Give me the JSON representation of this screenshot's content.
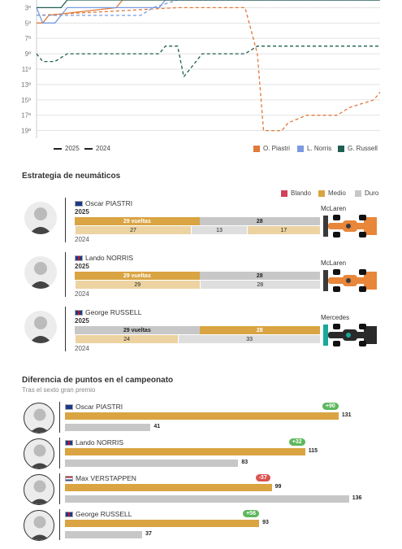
{
  "colors": {
    "piastri": "#e07a3a",
    "norris": "#7a9be0",
    "russell": "#1f5e52",
    "soft": "#d24059",
    "medium": "#d9a441",
    "medium_light": "#ecd3a1",
    "hard": "#c7c7c7",
    "gain": "#5cb85c",
    "loss": "#d9534f"
  },
  "position_chart": {
    "y_ticks": [
      "3º",
      "5º",
      "7º",
      "9º",
      "11º",
      "13º",
      "15º",
      "17º",
      "19º"
    ],
    "legend_years": {
      "y2025": "2025",
      "y2024": "2024"
    },
    "legend_drivers": [
      "O. Piastri",
      "L. Norris",
      "G. Russell"
    ]
  },
  "chart_data": [
    {
      "type": "line",
      "ylabel": "",
      "y_reversed": true,
      "ylim": [
        2,
        20
      ],
      "x_range": [
        1,
        57
      ],
      "series": [
        {
          "name": "O. Piastri",
          "year": "2025",
          "color": "#e07a3a",
          "points": [
            [
              1,
              5
            ],
            [
              2,
              5
            ],
            [
              3,
              4
            ],
            [
              14,
              3
            ],
            [
              15,
              2
            ],
            [
              57,
              2
            ]
          ]
        },
        {
          "name": "O. Piastri",
          "year": "2024",
          "color": "#e07a3a",
          "points": [
            [
              1,
              4
            ],
            [
              24,
              3
            ],
            [
              25,
              3
            ],
            [
              35,
              3
            ],
            [
              37,
              9
            ],
            [
              38,
              19
            ],
            [
              41,
              19
            ],
            [
              42,
              18
            ],
            [
              45,
              17
            ],
            [
              50,
              17
            ],
            [
              52,
              16
            ],
            [
              56,
              15
            ],
            [
              57,
              14
            ]
          ]
        },
        {
          "name": "L. Norris",
          "year": "2025",
          "color": "#7a9be0",
          "points": [
            [
              1,
              3
            ],
            [
              2,
              5
            ],
            [
              4,
              5
            ],
            [
              6,
              3
            ],
            [
              21,
              3
            ],
            [
              22,
              2
            ],
            [
              57,
              2
            ]
          ]
        },
        {
          "name": "L. Norris",
          "year": "2024",
          "color": "#7a9be0",
          "points": [
            [
              1,
              4
            ],
            [
              18,
              4
            ],
            [
              20,
              3
            ],
            [
              24,
              2
            ],
            [
              57,
              2
            ]
          ]
        },
        {
          "name": "G. Russell",
          "year": "2025",
          "color": "#1f5e52",
          "points": [
            [
              1,
              3
            ],
            [
              5,
              3
            ],
            [
              6,
              2
            ],
            [
              57,
              2
            ]
          ]
        },
        {
          "name": "G. Russell",
          "year": "2024",
          "color": "#1f5e52",
          "points": [
            [
              1,
              9
            ],
            [
              2,
              10
            ],
            [
              4,
              10
            ],
            [
              6,
              9
            ],
            [
              21,
              9
            ],
            [
              22,
              8
            ],
            [
              24,
              8
            ],
            [
              25,
              12
            ],
            [
              27,
              10
            ],
            [
              28,
              9
            ],
            [
              35,
              9
            ],
            [
              37,
              8
            ],
            [
              57,
              8
            ]
          ]
        }
      ]
    },
    {
      "type": "bar",
      "title": "Estrategia de neumáticos",
      "legend": [
        "Blando",
        "Medio",
        "Duro"
      ],
      "drivers": [
        {
          "name": "Oscar PIASTRI",
          "team": "McLaren",
          "y2025": [
            {
              "compound": "medium",
              "laps": 29,
              "label": "29 vueltas"
            },
            {
              "compound": "hard",
              "laps": 28,
              "label": "28"
            }
          ],
          "y2024": [
            {
              "compound": "medium",
              "laps": 27,
              "label": "27"
            },
            {
              "compound": "hard",
              "laps": 13,
              "label": "13"
            },
            {
              "compound": "medium",
              "laps": 17,
              "label": "17"
            }
          ]
        },
        {
          "name": "Lando NORRIS",
          "team": "McLaren",
          "y2025": [
            {
              "compound": "medium",
              "laps": 29,
              "label": "29 vueltas"
            },
            {
              "compound": "hard",
              "laps": 28,
              "label": "28"
            }
          ],
          "y2024": [
            {
              "compound": "medium",
              "laps": 29,
              "label": "29"
            },
            {
              "compound": "hard",
              "laps": 28,
              "label": "28"
            }
          ]
        },
        {
          "name": "George RUSSELL",
          "team": "Mercedes",
          "y2025": [
            {
              "compound": "hard",
              "laps": 29,
              "label": "29 vueltas"
            },
            {
              "compound": "medium",
              "laps": 28,
              "label": "28"
            }
          ],
          "y2024": [
            {
              "compound": "medium",
              "laps": 24,
              "label": "24"
            },
            {
              "compound": "hard",
              "laps": 33,
              "label": "33"
            }
          ]
        }
      ]
    },
    {
      "type": "bar",
      "title": "Diferencia de puntos en el campeonato",
      "subtitle": "Tras el sexto gran premio",
      "xlim": [
        0,
        140
      ],
      "drivers": [
        {
          "name": "Oscar PIASTRI",
          "flag": "au",
          "pts_2025": 131,
          "pts_2024": 41,
          "delta": "+90",
          "gain": true
        },
        {
          "name": "Lando NORRIS",
          "flag": "gb",
          "pts_2025": 115,
          "pts_2024": 83,
          "delta": "+32",
          "gain": true
        },
        {
          "name": "Max VERSTAPPEN",
          "flag": "nl",
          "pts_2025": 99,
          "pts_2024": 136,
          "delta": "-37",
          "gain": false
        },
        {
          "name": "George RUSSELL",
          "flag": "gb",
          "pts_2025": 93,
          "pts_2024": 37,
          "delta": "+56",
          "gain": true
        }
      ]
    }
  ],
  "labels": {
    "y2025": "2025",
    "y2024": "2024"
  }
}
